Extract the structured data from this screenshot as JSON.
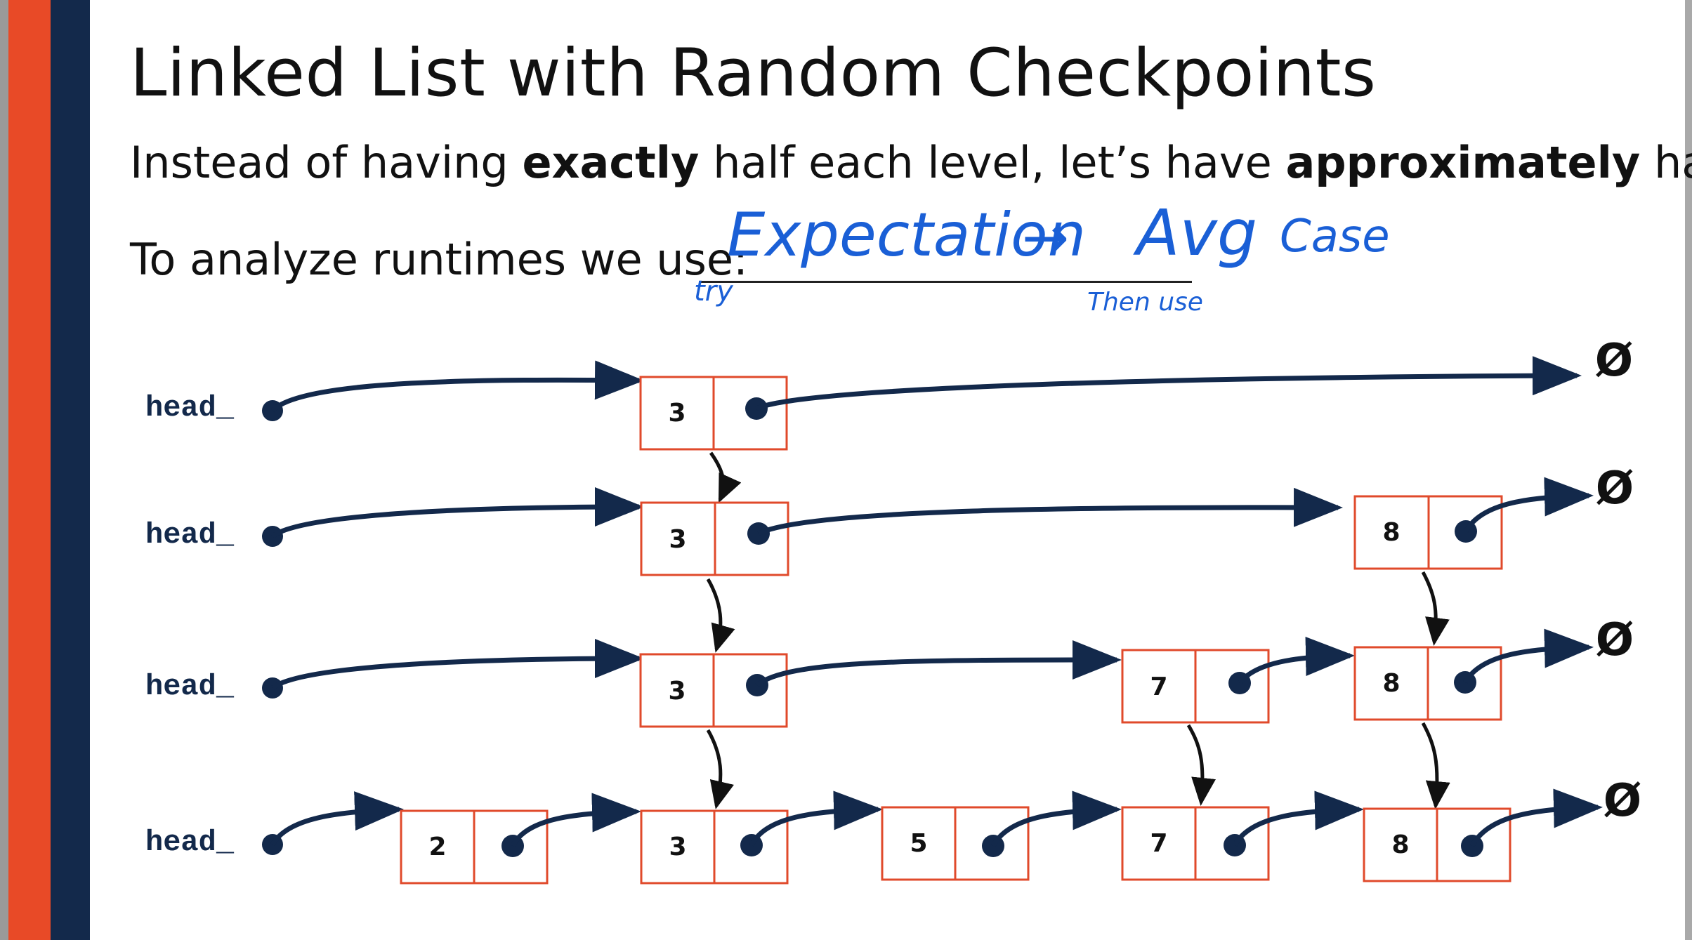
{
  "slide": {
    "title": "Linked List with Random Checkpoints",
    "subtitle": {
      "part1": "Instead of having ",
      "bold1": "exactly",
      "part2": " half each level, let’s have ",
      "bold2": "approximately",
      "part3": " half!"
    },
    "prompt": "To analyze runtimes we use:",
    "handwriting": {
      "answer": "Expectation",
      "arrow": "→",
      "avg": "Avg",
      "case": "Case",
      "try": "try",
      "then_use": "Then use"
    }
  },
  "diagram": {
    "head_label": "head_",
    "null_symbol": "Ø",
    "levels": [
      {
        "name": "level-3",
        "nodes": [
          "3"
        ]
      },
      {
        "name": "level-2",
        "nodes": [
          "3",
          "8"
        ]
      },
      {
        "name": "level-1",
        "nodes": [
          "3",
          "7",
          "8"
        ]
      },
      {
        "name": "level-0",
        "nodes": [
          "2",
          "3",
          "5",
          "7",
          "8"
        ]
      }
    ]
  },
  "colors": {
    "accent_orange": "#e84a27",
    "navy": "#13294b",
    "node_border": "#e04a2b",
    "arrow": "#13294b",
    "handwriting": "#1a5fd6"
  }
}
